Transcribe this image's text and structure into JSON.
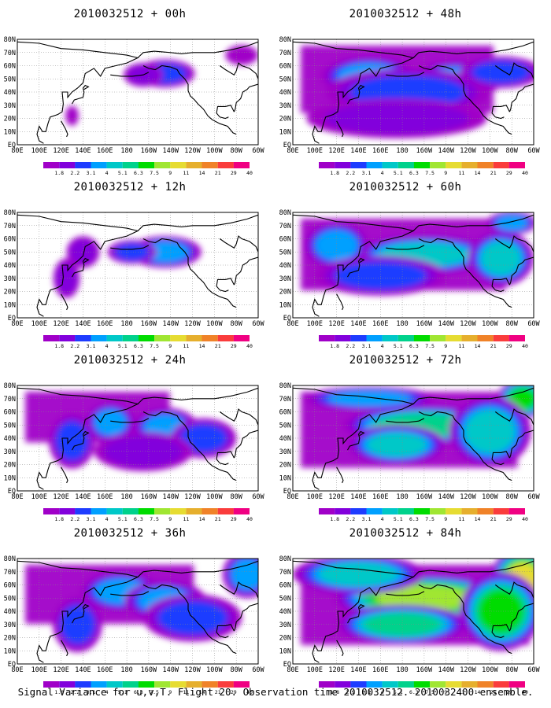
{
  "panels": [
    {
      "title": "2010032512 + 00h",
      "intensity": 0.35,
      "coverage": 0.3
    },
    {
      "title": "2010032512 + 48h",
      "intensity": 0.55,
      "coverage": 0.8
    },
    {
      "title": "2010032512 + 12h",
      "intensity": 0.45,
      "coverage": 0.45
    },
    {
      "title": "2010032512 + 60h",
      "intensity": 0.65,
      "coverage": 0.85
    },
    {
      "title": "2010032512 + 24h",
      "intensity": 0.5,
      "coverage": 0.6
    },
    {
      "title": "2010032512 + 72h",
      "intensity": 0.75,
      "coverage": 0.9
    },
    {
      "title": "2010032512 + 36h",
      "intensity": 0.55,
      "coverage": 0.7
    },
    {
      "title": "2010032512 + 84h",
      "intensity": 0.85,
      "coverage": 0.95
    }
  ],
  "x_tick_labels": [
    "80E",
    "100E",
    "120E",
    "140E",
    "160E",
    "180",
    "160W",
    "140W",
    "120W",
    "100W",
    "80W",
    "60W"
  ],
  "y_tick_labels": [
    "EQ",
    "10N",
    "20N",
    "30N",
    "40N",
    "50N",
    "60N",
    "70N",
    "80N"
  ],
  "colorbar": {
    "labels": [
      "1.8",
      "2.2",
      "3.1",
      "4",
      "5.1",
      "6.3",
      "7.5",
      "9",
      "11",
      "14",
      "21",
      "29",
      "40"
    ],
    "colors": [
      "#a000c8",
      "#8200dc",
      "#1e3cff",
      "#00a0ff",
      "#00c8c8",
      "#00d28c",
      "#00dc00",
      "#a0e632",
      "#e6dc32",
      "#e6af2d",
      "#f08228",
      "#fa3c3c",
      "#f00082"
    ]
  },
  "footer": "Signal Variance for u,v,T. Flight 20. Observation time 2010032512. 2010032400 ensemble."
}
